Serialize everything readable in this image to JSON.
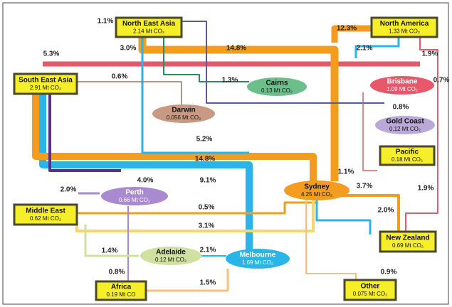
{
  "nodes": [
    {
      "name": "North East Asia",
      "value": "2.14 Mt CO₂"
    },
    {
      "name": "South East Asia",
      "value": "2.91 Mt CO₂"
    },
    {
      "name": "North America",
      "value": "1.33 Mt CO₂"
    },
    {
      "name": "Pacific",
      "value": "0.18 Mt CO₂"
    },
    {
      "name": "Middle East",
      "value": "0.62 Mt CO₂"
    },
    {
      "name": "New Zealand",
      "value": "0.69 Mt CO₂"
    },
    {
      "name": "Africa",
      "value": "0.19 Mt CO"
    },
    {
      "name": "Other",
      "value": "0.075 Mt CO₂"
    },
    {
      "name": "Cairns",
      "value": "0.13 Mt CO₂"
    },
    {
      "name": "Darwin",
      "value": "0.056 Mt CO₂"
    },
    {
      "name": "Brisbane",
      "value": "1.09 Mt CO₂"
    },
    {
      "name": "Gold Coast",
      "value": "0.12 Mt CO₂"
    },
    {
      "name": "Perth",
      "value": "0.66 Mt CO₂"
    },
    {
      "name": "Sydney",
      "value": "4.25 Mt CO₂"
    },
    {
      "name": "Adelaide",
      "value": "0.12 Mt CO₂"
    },
    {
      "name": "Melbourne",
      "value": "1.69 Mt CO₂"
    }
  ],
  "flows": [
    "1.1%",
    "3.0%",
    "5.3%",
    "0.6%",
    "14.8%",
    "12.3%",
    "2.1%",
    "1.9%",
    "0.7%",
    "1.3%",
    "0.8%",
    "5.2%",
    "14.8%",
    "1.1%",
    "3.7%",
    "1.9%",
    "4.0%",
    "9.1%",
    "2.0%",
    "0.5%",
    "2.0%",
    "3.1%",
    "1.4%",
    "2.1%",
    "0.8%",
    "1.5%",
    "0.9%"
  ]
}
